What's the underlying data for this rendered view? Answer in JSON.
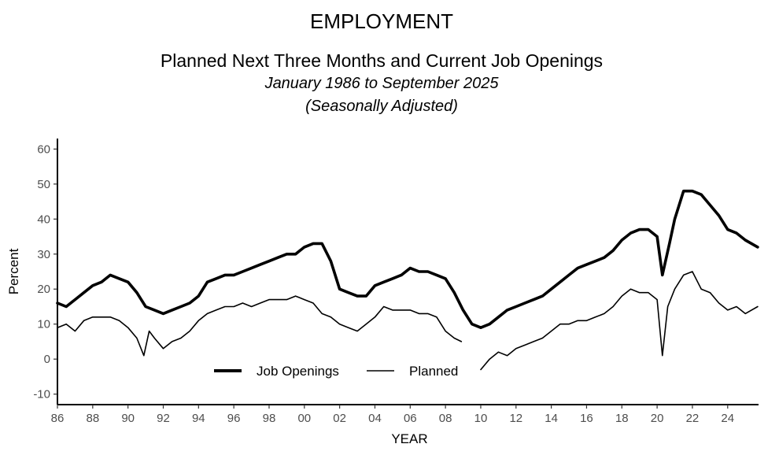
{
  "chart_data": {
    "type": "line",
    "title": "EMPLOYMENT",
    "subtitle": "Planned Next Three Months and Current Job Openings",
    "period": "January 1986 to September 2025",
    "note": "(Seasonally Adjusted)",
    "xlabel": "YEAR",
    "ylabel": "Percent",
    "xlim": [
      1986,
      2025.75
    ],
    "ylim": [
      -13,
      63
    ],
    "yticks": [
      -10,
      0,
      10,
      20,
      30,
      40,
      50,
      60
    ],
    "xticks": [
      "86",
      "88",
      "90",
      "92",
      "94",
      "96",
      "98",
      "00",
      "02",
      "04",
      "06",
      "08",
      "10",
      "12",
      "14",
      "16",
      "18",
      "20",
      "22",
      "24"
    ],
    "legend_position": "bottom-center",
    "grid": false,
    "series": [
      {
        "name": "Job Openings",
        "style": "thick",
        "color": "#000000",
        "points": [
          [
            1986,
            16
          ],
          [
            1986.5,
            15
          ],
          [
            1987,
            17
          ],
          [
            1987.5,
            19
          ],
          [
            1988,
            21
          ],
          [
            1988.5,
            22
          ],
          [
            1989,
            24
          ],
          [
            1989.5,
            23
          ],
          [
            1990,
            22
          ],
          [
            1990.5,
            19
          ],
          [
            1991,
            15
          ],
          [
            1991.5,
            14
          ],
          [
            1992,
            13
          ],
          [
            1992.5,
            14
          ],
          [
            1993,
            15
          ],
          [
            1993.5,
            16
          ],
          [
            1994,
            18
          ],
          [
            1994.5,
            22
          ],
          [
            1995,
            23
          ],
          [
            1995.5,
            24
          ],
          [
            1996,
            24
          ],
          [
            1996.5,
            25
          ],
          [
            1997,
            26
          ],
          [
            1997.5,
            27
          ],
          [
            1998,
            28
          ],
          [
            1998.5,
            29
          ],
          [
            1999,
            30
          ],
          [
            1999.5,
            30
          ],
          [
            2000,
            32
          ],
          [
            2000.5,
            33
          ],
          [
            2001,
            33
          ],
          [
            2001.5,
            28
          ],
          [
            2002,
            20
          ],
          [
            2002.5,
            19
          ],
          [
            2003,
            18
          ],
          [
            2003.5,
            18
          ],
          [
            2004,
            21
          ],
          [
            2004.5,
            22
          ],
          [
            2005,
            23
          ],
          [
            2005.5,
            24
          ],
          [
            2006,
            26
          ],
          [
            2006.5,
            25
          ],
          [
            2007,
            25
          ],
          [
            2007.5,
            24
          ],
          [
            2008,
            23
          ],
          [
            2008.5,
            19
          ],
          [
            2009,
            14
          ],
          [
            2009.5,
            10
          ],
          [
            2010,
            9
          ],
          [
            2010.5,
            10
          ],
          [
            2011,
            12
          ],
          [
            2011.5,
            14
          ],
          [
            2012,
            15
          ],
          [
            2012.5,
            16
          ],
          [
            2013,
            17
          ],
          [
            2013.5,
            18
          ],
          [
            2014,
            20
          ],
          [
            2014.5,
            22
          ],
          [
            2015,
            24
          ],
          [
            2015.5,
            26
          ],
          [
            2016,
            27
          ],
          [
            2016.5,
            28
          ],
          [
            2017,
            29
          ],
          [
            2017.5,
            31
          ],
          [
            2018,
            34
          ],
          [
            2018.5,
            36
          ],
          [
            2019,
            37
          ],
          [
            2019.5,
            37
          ],
          [
            2020,
            35
          ],
          [
            2020.3,
            24
          ],
          [
            2020.7,
            33
          ],
          [
            2021,
            40
          ],
          [
            2021.5,
            48
          ],
          [
            2022,
            48
          ],
          [
            2022.5,
            47
          ],
          [
            2023,
            44
          ],
          [
            2023.5,
            41
          ],
          [
            2024,
            37
          ],
          [
            2024.5,
            36
          ],
          [
            2025,
            34
          ],
          [
            2025.7,
            32
          ]
        ]
      },
      {
        "name": "Planned",
        "style": "thin",
        "color": "#000000",
        "segments": [
          [
            [
              1986,
              9
            ],
            [
              1986.5,
              10
            ],
            [
              1987,
              8
            ],
            [
              1987.5,
              11
            ],
            [
              1988,
              12
            ],
            [
              1988.5,
              12
            ],
            [
              1989,
              12
            ],
            [
              1989.5,
              11
            ],
            [
              1990,
              9
            ],
            [
              1990.5,
              6
            ],
            [
              1990.9,
              1
            ],
            [
              1991.2,
              8
            ],
            [
              1991.5,
              6
            ],
            [
              1992,
              3
            ],
            [
              1992.5,
              5
            ],
            [
              1993,
              6
            ],
            [
              1993.5,
              8
            ],
            [
              1994,
              11
            ],
            [
              1994.5,
              13
            ],
            [
              1995,
              14
            ],
            [
              1995.5,
              15
            ],
            [
              1996,
              15
            ],
            [
              1996.5,
              16
            ],
            [
              1997,
              15
            ],
            [
              1997.5,
              16
            ],
            [
              1998,
              17
            ],
            [
              1998.5,
              17
            ],
            [
              1999,
              17
            ],
            [
              1999.5,
              18
            ],
            [
              2000,
              17
            ],
            [
              2000.5,
              16
            ],
            [
              2001,
              13
            ],
            [
              2001.5,
              12
            ],
            [
              2002,
              10
            ],
            [
              2002.5,
              9
            ],
            [
              2003,
              8
            ],
            [
              2003.5,
              10
            ],
            [
              2004,
              12
            ],
            [
              2004.5,
              15
            ],
            [
              2005,
              14
            ],
            [
              2005.5,
              14
            ],
            [
              2006,
              14
            ],
            [
              2006.5,
              13
            ],
            [
              2007,
              13
            ],
            [
              2007.5,
              12
            ],
            [
              2008,
              8
            ],
            [
              2008.5,
              6
            ],
            [
              2008.9,
              5
            ]
          ],
          [
            [
              2010,
              -3
            ],
            [
              2010.5,
              0
            ],
            [
              2011,
              2
            ],
            [
              2011.5,
              1
            ],
            [
              2012,
              3
            ],
            [
              2012.5,
              4
            ],
            [
              2013,
              5
            ],
            [
              2013.5,
              6
            ],
            [
              2014,
              8
            ],
            [
              2014.5,
              10
            ],
            [
              2015,
              10
            ],
            [
              2015.5,
              11
            ],
            [
              2016,
              11
            ],
            [
              2016.5,
              12
            ],
            [
              2017,
              13
            ],
            [
              2017.5,
              15
            ],
            [
              2018,
              18
            ],
            [
              2018.5,
              20
            ],
            [
              2019,
              19
            ],
            [
              2019.5,
              19
            ],
            [
              2020,
              17
            ],
            [
              2020.3,
              1
            ],
            [
              2020.6,
              15
            ],
            [
              2021,
              20
            ],
            [
              2021.5,
              24
            ],
            [
              2022,
              25
            ],
            [
              2022.5,
              20
            ],
            [
              2023,
              19
            ],
            [
              2023.5,
              16
            ],
            [
              2024,
              14
            ],
            [
              2024.5,
              15
            ],
            [
              2025,
              13
            ],
            [
              2025.7,
              15
            ]
          ]
        ]
      }
    ]
  }
}
